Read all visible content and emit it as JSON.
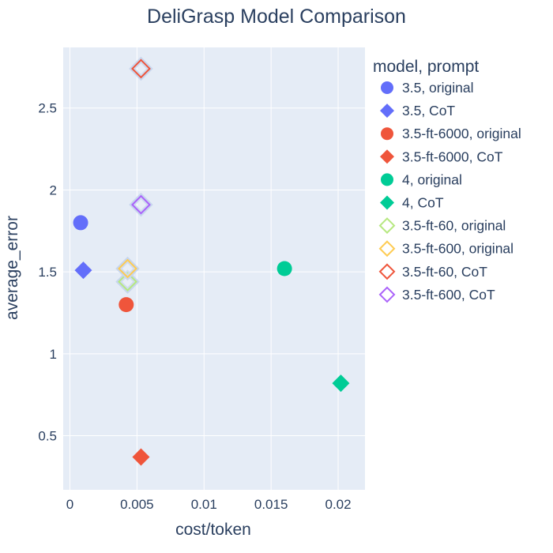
{
  "chart_data": {
    "type": "scatter",
    "title": "DeliGrasp Model Comparison",
    "xlabel": "cost/token",
    "ylabel": "average_error",
    "xlim": [
      -0.0005,
      0.022
    ],
    "ylim": [
      0.17,
      2.87
    ],
    "x_ticks": [
      0,
      0.005,
      0.01,
      0.015,
      0.02
    ],
    "x_tick_labels": [
      "0",
      "0.005",
      "0.01",
      "0.015",
      "0.02"
    ],
    "y_ticks": [
      0.5,
      1,
      1.5,
      2,
      2.5
    ],
    "y_tick_labels": [
      "0.5",
      "1",
      "1.5",
      "2",
      "2.5"
    ],
    "grid": true,
    "plot_background": "#E5ECF6",
    "legend": {
      "title": "model, prompt",
      "placement": "right"
    },
    "series": [
      {
        "name": "3.5, original",
        "symbol": "circle",
        "filled": true,
        "color": "#636EFA",
        "x": [
          0.0008
        ],
        "y": [
          1.8
        ]
      },
      {
        "name": "3.5, CoT",
        "symbol": "diamond",
        "filled": true,
        "color": "#636EFA",
        "x": [
          0.001
        ],
        "y": [
          1.51
        ]
      },
      {
        "name": "3.5-ft-6000, original",
        "symbol": "circle",
        "filled": true,
        "color": "#EF553B",
        "x": [
          0.0042
        ],
        "y": [
          1.3
        ]
      },
      {
        "name": "3.5-ft-6000, CoT",
        "symbol": "diamond",
        "filled": true,
        "color": "#EF553B",
        "x": [
          0.0053
        ],
        "y": [
          0.37
        ]
      },
      {
        "name": "4, original",
        "symbol": "circle",
        "filled": true,
        "color": "#00CC96",
        "x": [
          0.016
        ],
        "y": [
          1.52
        ]
      },
      {
        "name": "4, CoT",
        "symbol": "diamond",
        "filled": true,
        "color": "#00CC96",
        "x": [
          0.0202
        ],
        "y": [
          0.82
        ]
      },
      {
        "name": "3.5-ft-60, original",
        "symbol": "diamond-open",
        "filled": false,
        "color": "#B6E880",
        "x": [
          0.0043
        ],
        "y": [
          1.44
        ]
      },
      {
        "name": "3.5-ft-600, original",
        "symbol": "diamond-open",
        "filled": false,
        "color": "#FECB52",
        "x": [
          0.0043
        ],
        "y": [
          1.52
        ]
      },
      {
        "name": "3.5-ft-60, CoT",
        "symbol": "diamond-open",
        "filled": false,
        "color": "#EF553B",
        "x": [
          0.0053
        ],
        "y": [
          2.74
        ]
      },
      {
        "name": "3.5-ft-600, CoT",
        "symbol": "diamond-open",
        "filled": false,
        "color": "#AB63FA",
        "x": [
          0.0053
        ],
        "y": [
          1.91
        ]
      }
    ]
  }
}
